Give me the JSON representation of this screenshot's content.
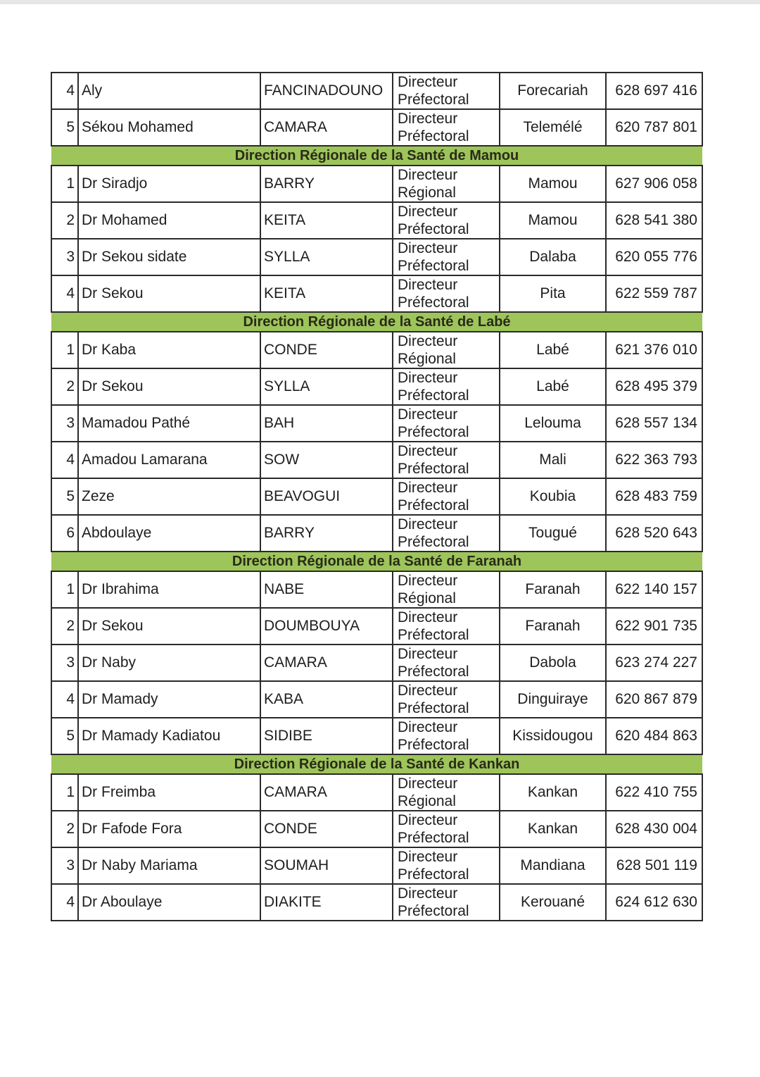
{
  "document": {
    "accent_color": "#9dc55a",
    "groups": [
      {
        "heading": "",
        "rows": [
          {
            "num": "4",
            "first": "Aly",
            "last": "FANCINADOUNO",
            "title": "Directeur Préfectoral",
            "place": "Forecariah",
            "phone": "628 697 416"
          },
          {
            "num": "5",
            "first": "Sékou Mohamed",
            "last": "CAMARA",
            "title": "Directeur Préfectoral",
            "place": "Telemélé",
            "phone": "620 787 801"
          }
        ]
      },
      {
        "heading": "Direction Régionale de la Santé de Mamou",
        "rows": [
          {
            "num": "1",
            "first": "Dr Siradjo",
            "last": "BARRY",
            "title": "Directeur Régional",
            "place": "Mamou",
            "phone": "627 906 058"
          },
          {
            "num": "2",
            "first": "Dr Mohamed",
            "last": "KEITA",
            "title": "Directeur Préfectoral",
            "place": "Mamou",
            "phone": "628 541 380"
          },
          {
            "num": "3",
            "first": "Dr Sekou sidate",
            "last": "SYLLA",
            "title": "Directeur Préfectoral",
            "place": "Dalaba",
            "phone": "620 055 776"
          },
          {
            "num": "4",
            "first": "Dr Sekou",
            "last": "KEITA",
            "title": "Directeur Préfectoral",
            "place": "Pita",
            "phone": "622 559 787"
          }
        ]
      },
      {
        "heading": "Direction Régionale de la Santé de Labé",
        "rows": [
          {
            "num": "1",
            "first": "Dr Kaba",
            "last": "CONDE",
            "title": "Directeur Régional",
            "place": "Labé",
            "phone": "621 376 010"
          },
          {
            "num": "2",
            "first": "Dr Sekou",
            "last": "SYLLA",
            "title": "Directeur Préfectoral",
            "place": "Labé",
            "phone": "628 495 379"
          },
          {
            "num": "3",
            "first": "Mamadou Pathé",
            "last": "BAH",
            "title": "Directeur Préfectoral",
            "place": "Lelouma",
            "phone": "628 557 134"
          },
          {
            "num": "4",
            "first": "Amadou Lamarana",
            "last": "SOW",
            "title": "Directeur Préfectoral",
            "place": "Mali",
            "phone": "622 363 793"
          },
          {
            "num": "5",
            "first": "Zeze",
            "last": "BEAVOGUI",
            "title": "Directeur Préfectoral",
            "place": "Koubia",
            "phone": "628 483 759"
          },
          {
            "num": "6",
            "first": "Abdoulaye",
            "last": "BARRY",
            "title": "Directeur Préfectoral",
            "place": "Tougué",
            "phone": "628 520 643"
          }
        ]
      },
      {
        "heading": "Direction Régionale de la Santé de Faranah",
        "rows": [
          {
            "num": "1",
            "first": "Dr Ibrahima",
            "last": "NABE",
            "title": "Directeur Régional",
            "place": "Faranah",
            "phone": "622 140 157"
          },
          {
            "num": "2",
            "first": "Dr Sekou",
            "last": "DOUMBOUYA",
            "title": "Directeur Préfectoral",
            "place": "Faranah",
            "phone": "622 901 735"
          },
          {
            "num": "3",
            "first": "Dr Naby",
            "last": "CAMARA",
            "title": "Directeur Préfectoral",
            "place": "Dabola",
            "phone": "623 274 227"
          },
          {
            "num": "4",
            "first": "Dr Mamady",
            "last": "KABA",
            "title": "Directeur Préfectoral",
            "place": "Dinguiraye",
            "phone": "620 867 879"
          },
          {
            "num": "5",
            "first": "Dr Mamady Kadiatou",
            "last": "SIDIBE",
            "title": "Directeur Préfectoral",
            "place": "Kissidougou",
            "phone": "620 484 863"
          }
        ]
      },
      {
        "heading": "Direction Régionale de la Santé de Kankan",
        "rows": [
          {
            "num": "1",
            "first": "Dr Freimba",
            "last": "CAMARA",
            "title": "Directeur Régional",
            "place": "Kankan",
            "phone": "622 410 755"
          },
          {
            "num": "2",
            "first": "Dr Fafode Fora",
            "last": "CONDE",
            "title": "Directeur Préfectoral",
            "place": "Kankan",
            "phone": "628 430 004"
          },
          {
            "num": "3",
            "first": "Dr Naby Mariama",
            "last": "SOUMAH",
            "title": "Directeur Préfectoral",
            "place": "Mandiana",
            "phone": "628 501 119"
          },
          {
            "num": "4",
            "first": "Dr Aboulaye",
            "last": "DIAKITE",
            "title": "Directeur Préfectoral",
            "place": "Kerouané",
            "phone": "624 612 630"
          }
        ]
      }
    ]
  }
}
